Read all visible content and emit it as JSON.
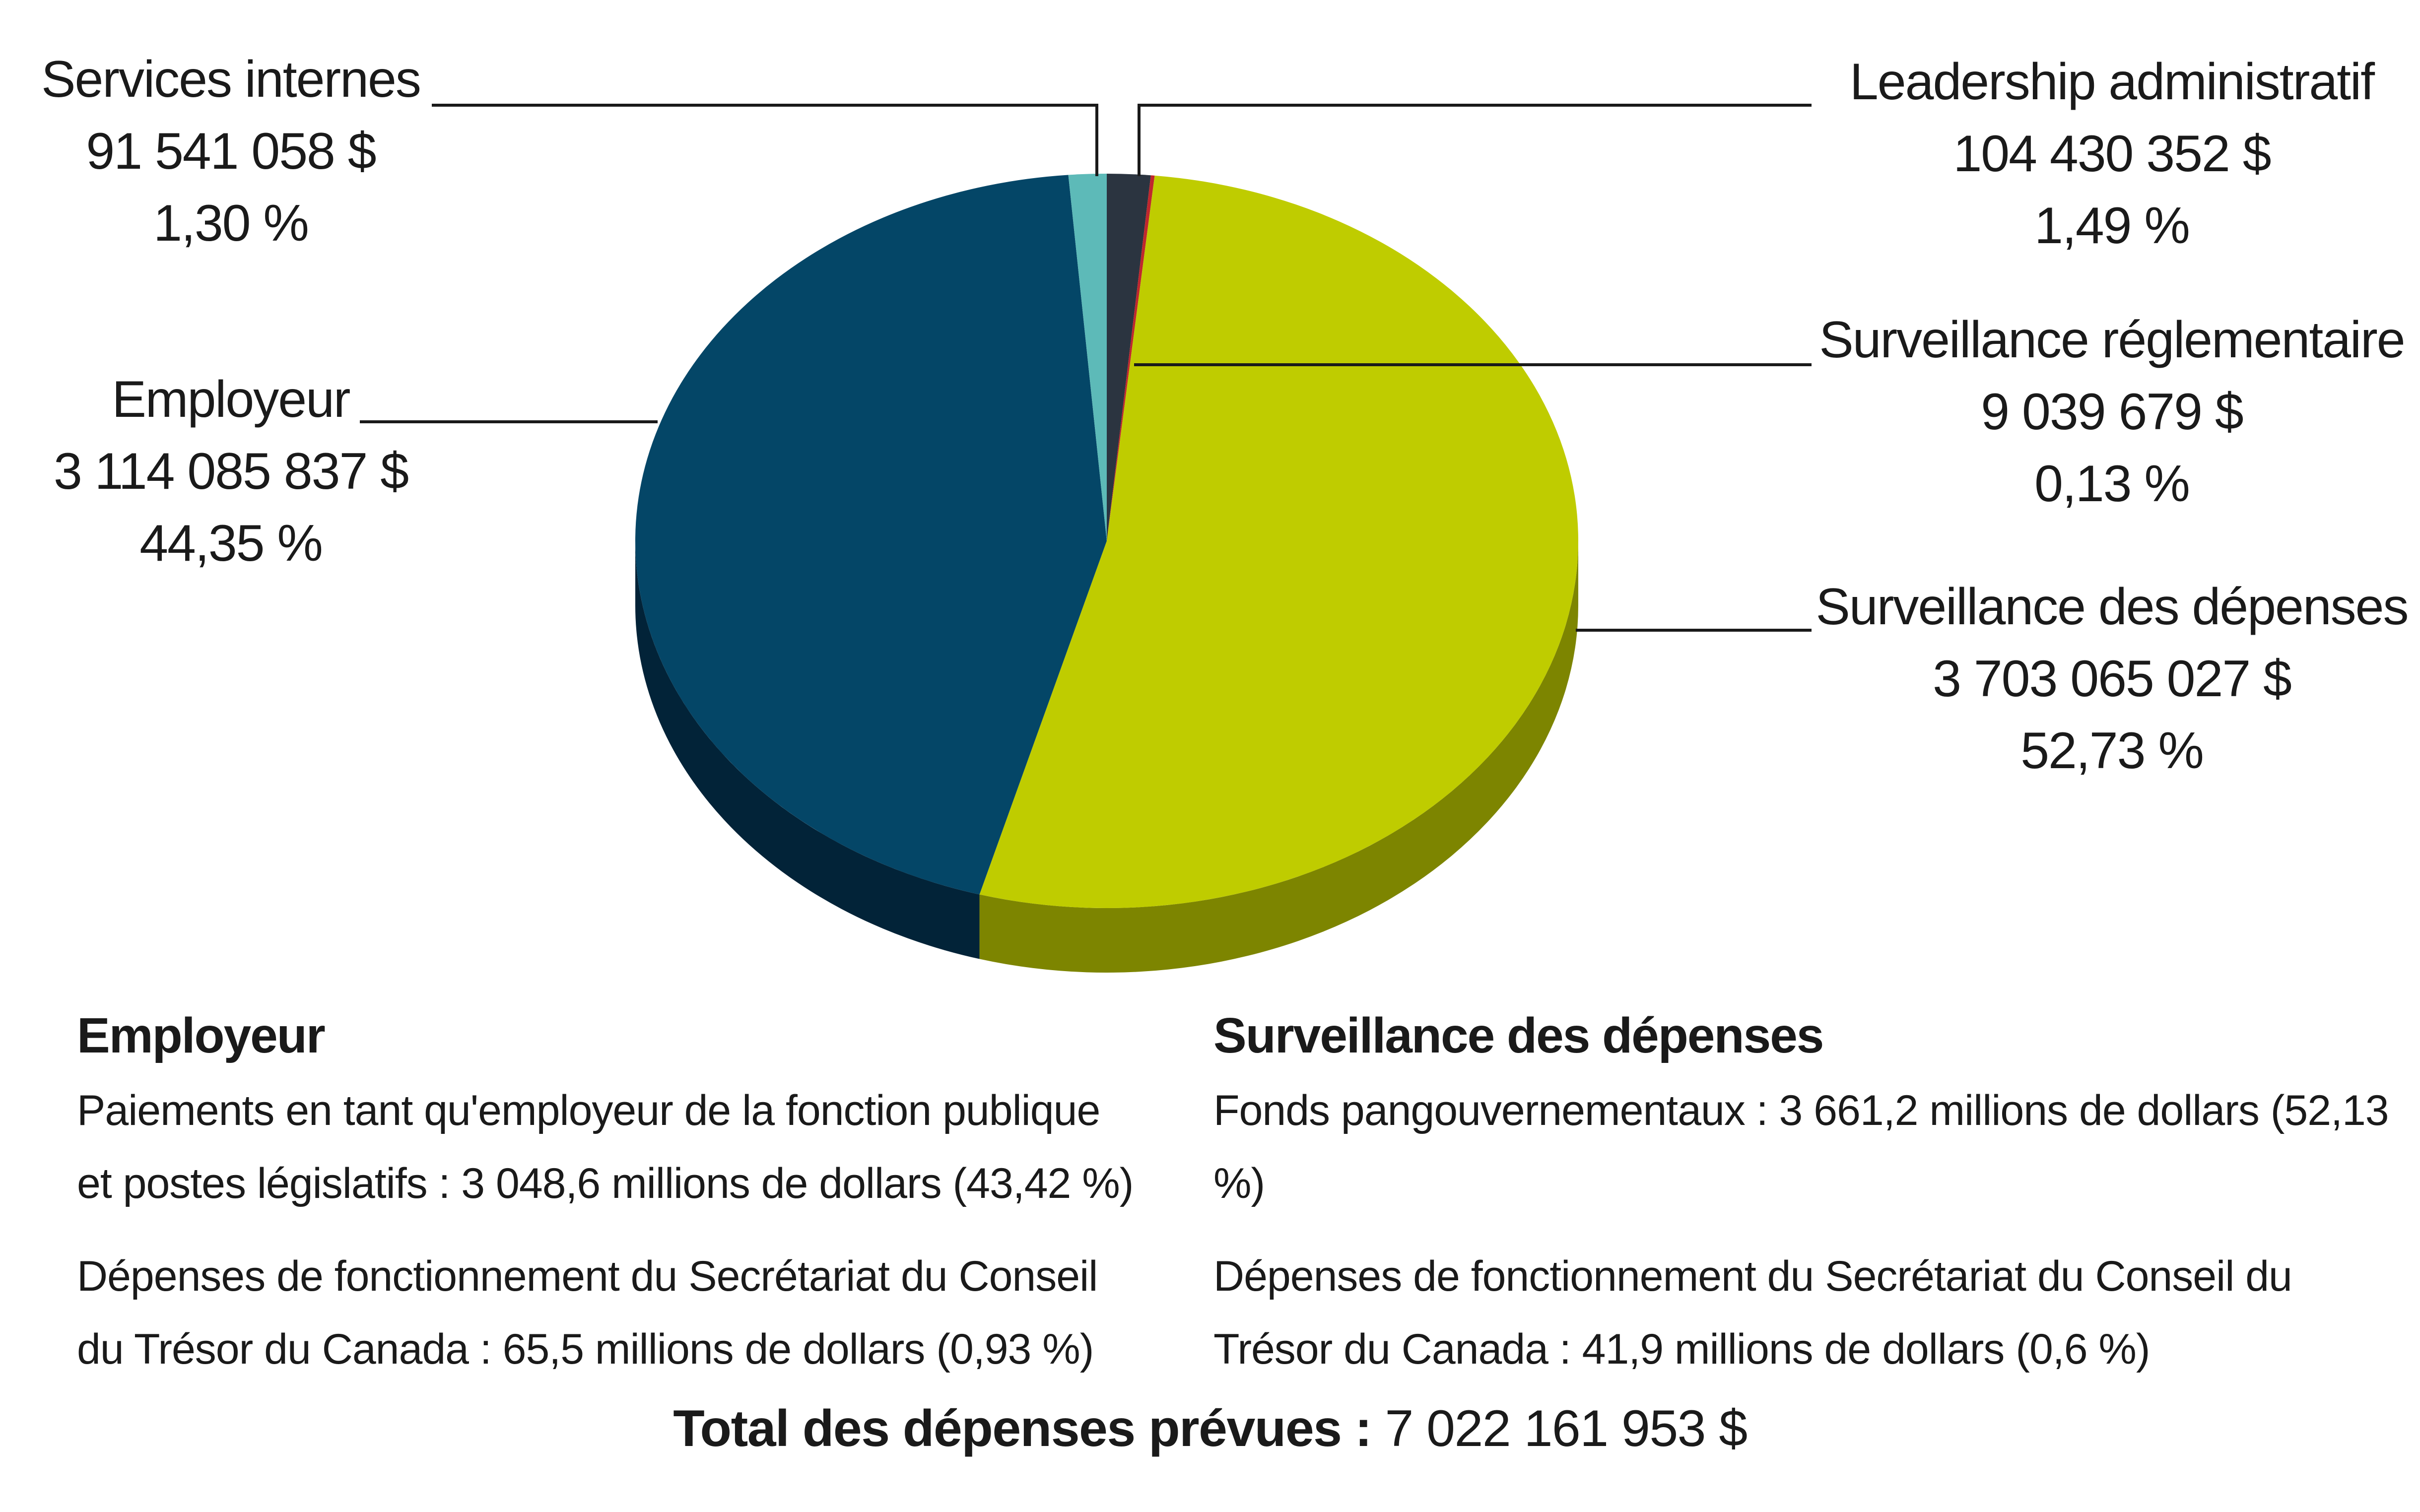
{
  "chart_data": {
    "type": "pie",
    "title": "",
    "slices": [
      {
        "name": "Leadership administratif",
        "amount": "104 430 352 $",
        "percent": "1,49 %",
        "value": 1.49,
        "color": "#2b3440",
        "side_color": "#161c24"
      },
      {
        "name": "Surveillance réglementaire",
        "amount": "9 039 679 $",
        "percent": "0,13 %",
        "value": 0.13,
        "color": "#c0272d",
        "side_color": "#7a1a1e"
      },
      {
        "name": "Surveillance des dépenses",
        "amount": "3 703 065 027 $",
        "percent": "52,73 %",
        "value": 52.73,
        "color": "#bfcc00",
        "side_color": "#7d8500"
      },
      {
        "name": "Employeur",
        "amount": "3 114 085 837 $",
        "percent": "44,35 %",
        "value": 44.35,
        "color": "#044667",
        "side_color": "#022338"
      },
      {
        "name": "Services internes",
        "amount": "91 541 058 $",
        "percent": "1,30 %",
        "value": 1.3,
        "color": "#5dbab8",
        "side_color": "#3a8280"
      }
    ]
  },
  "notes": {
    "employeur": {
      "heading": "Employeur",
      "items": [
        "Paiements en tant qu'employeur de la fonction publique et postes législatifs : 3 048,6 millions de dollars (43,42 %)",
        "Dépenses de fonctionnement du Secrétariat du Conseil du Trésor du Canada : 65,5 millions de dollars (0,93 %)"
      ]
    },
    "surveillance": {
      "heading": "Surveillance des dépenses",
      "items": [
        "Fonds pangouvernementaux : 3 661,2 millions de dollars (52,13 %)",
        "Dépenses de fonctionnement du Secrétariat du Conseil du Trésor du Canada : 41,9 millions de dollars (0,6 %)"
      ]
    }
  },
  "total": {
    "label": "Total des dépenses prévues :",
    "value": "7 022 161 953 $"
  }
}
